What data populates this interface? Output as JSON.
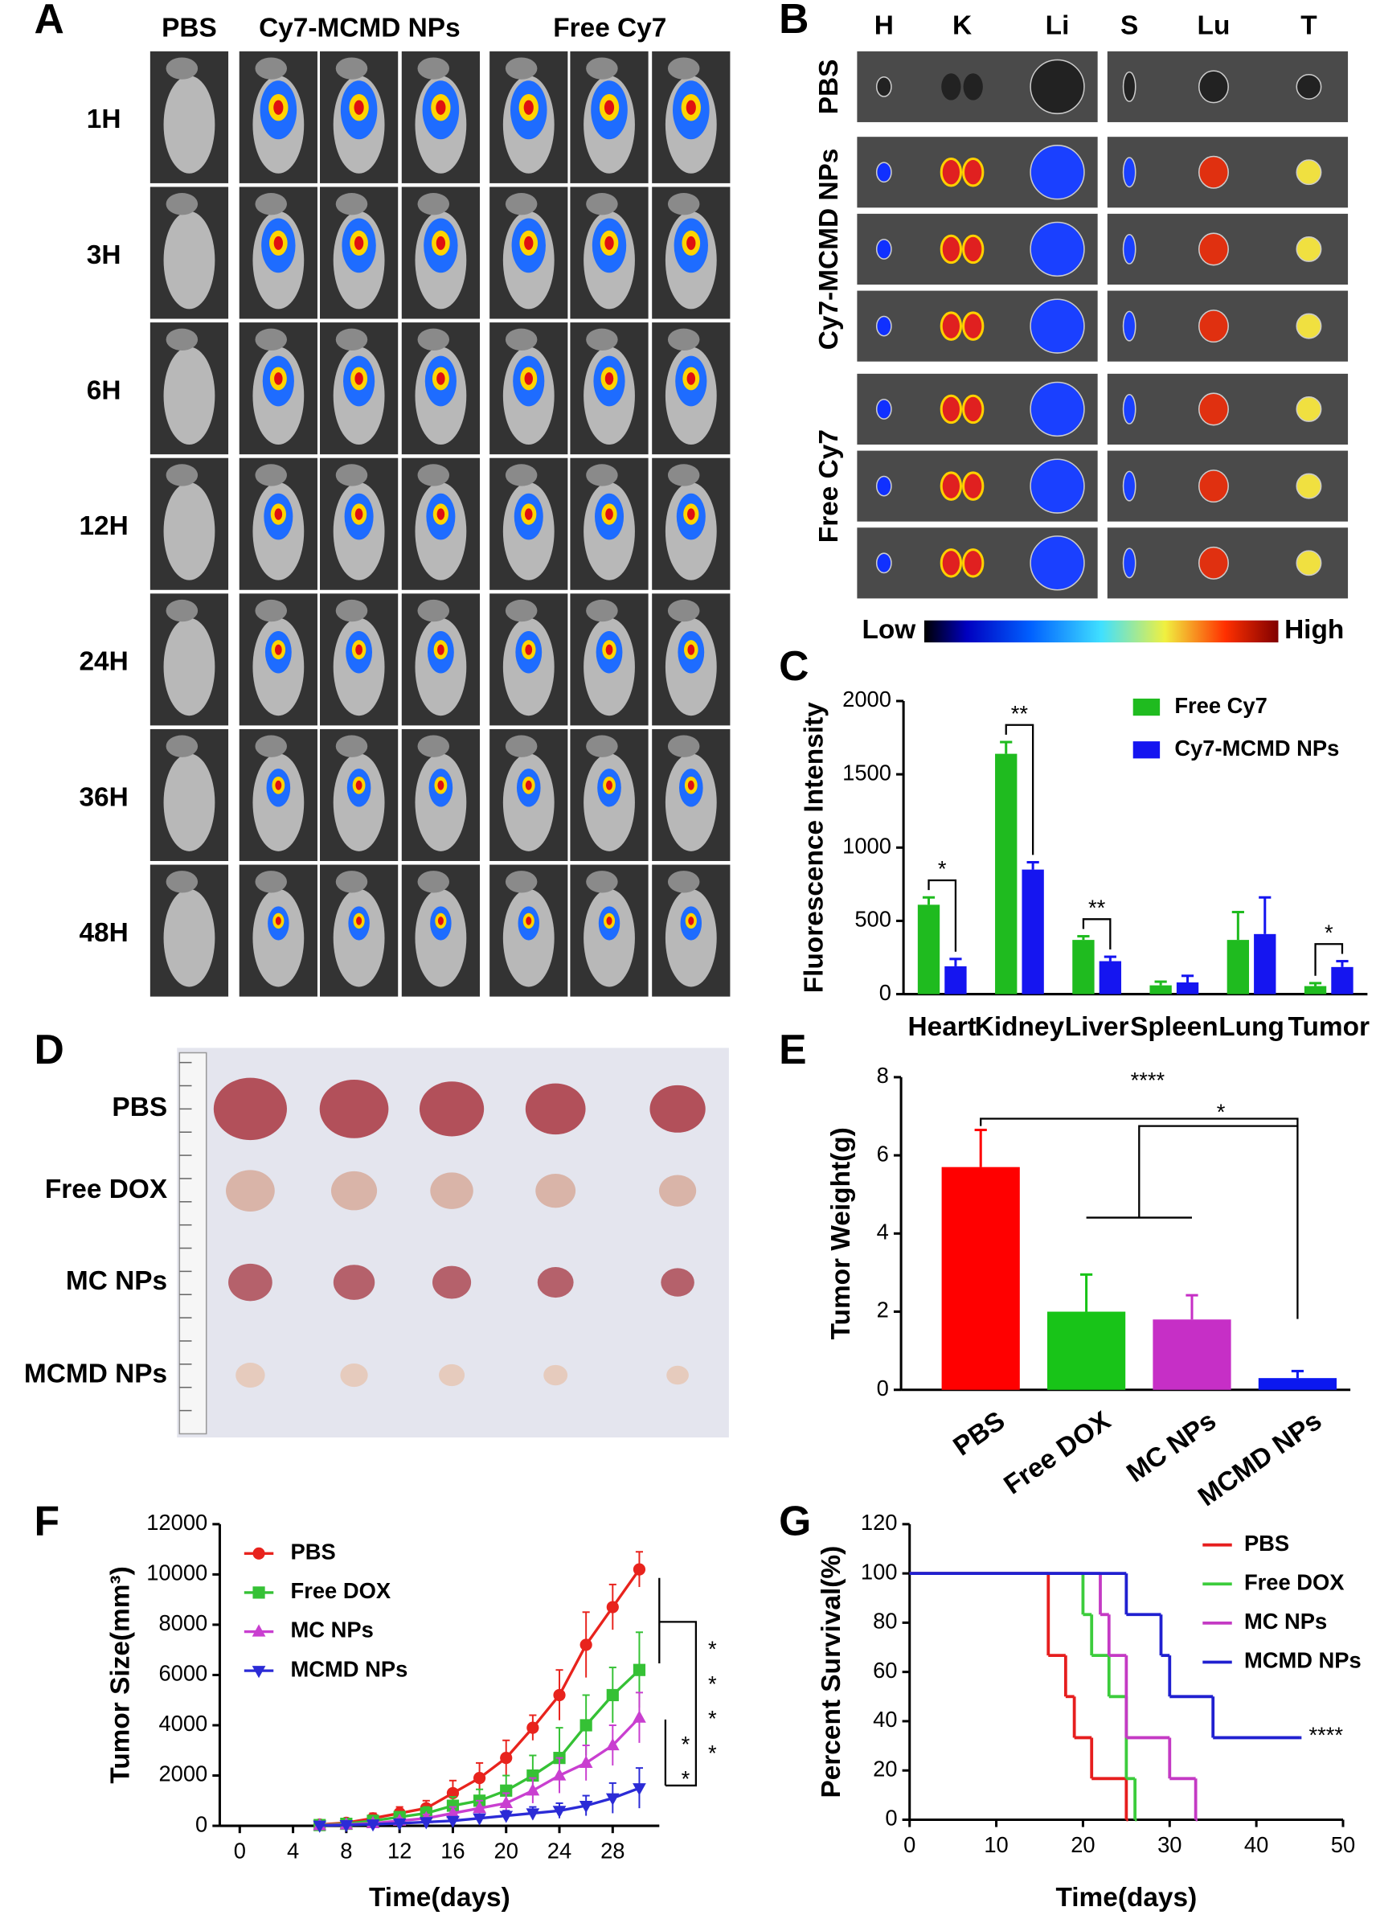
{
  "panels": {
    "a": {
      "letter": "A",
      "columns": [
        "PBS",
        "Cy7-MCMD NPs",
        "Free Cy7"
      ],
      "rows": [
        "1H",
        "3H",
        "6H",
        "12H",
        "24H",
        "36H",
        "48H"
      ]
    },
    "b": {
      "letter": "B",
      "columns": [
        "H",
        "K",
        "Li",
        "S",
        "Lu",
        "T"
      ],
      "rows": [
        "PBS",
        "Cy7-MCMD NPs",
        "Free Cy7"
      ],
      "colorbar": {
        "low": "Low",
        "high": "High"
      }
    },
    "d": {
      "letter": "D",
      "rows": [
        "PBS",
        "Free DOX",
        "MC NPs",
        "MCMD NPs"
      ]
    }
  },
  "chart_data": [
    {
      "type": "bar",
      "panel": "C",
      "ylabel": "Fluorescence Intensity",
      "categories": [
        "Heart",
        "Kidney",
        "Liver",
        "Spleen",
        "Lung",
        "Tumor"
      ],
      "series": [
        {
          "name": "Free Cy7",
          "color": "#1fbb1f",
          "values": [
            610,
            1640,
            370,
            60,
            370,
            55
          ],
          "errors": [
            50,
            80,
            25,
            25,
            190,
            20
          ]
        },
        {
          "name": "Cy7-MCMD NPs",
          "color": "#1515f0",
          "values": [
            190,
            850,
            225,
            80,
            410,
            185
          ],
          "errors": [
            50,
            50,
            30,
            45,
            250,
            40
          ]
        }
      ],
      "significance": [
        "*",
        "**",
        "**",
        null,
        null,
        "*"
      ],
      "ylim": [
        0,
        2000
      ],
      "yticks": [
        0,
        500,
        1000,
        1500,
        2000
      ]
    },
    {
      "type": "bar",
      "panel": "E",
      "ylabel": "Tumor Weight(g)",
      "categories": [
        "PBS",
        "Free DOX",
        "MC NPs",
        "MCMD NPs"
      ],
      "values": [
        5.7,
        2.0,
        1.8,
        0.3
      ],
      "errors": [
        0.95,
        0.95,
        0.62,
        0.18
      ],
      "colors": [
        "#ff0000",
        "#18c418",
        "#c62fc6",
        "#0b18f0"
      ],
      "annotations": [
        "****",
        "*"
      ],
      "ylim": [
        0,
        8
      ],
      "yticks": [
        0,
        2,
        4,
        6,
        8
      ]
    },
    {
      "type": "line",
      "panel": "F",
      "xlabel": "Time(days)",
      "ylabel": "Tumor Size(mm³)",
      "x": [
        6,
        8,
        10,
        12,
        14,
        16,
        18,
        20,
        22,
        24,
        26,
        28,
        30
      ],
      "series": [
        {
          "name": "PBS",
          "color": "#e8231d",
          "marker": "circle",
          "values": [
            50,
            120,
            300,
            500,
            700,
            1300,
            1900,
            2700,
            3900,
            5200,
            7200,
            8700,
            10200
          ],
          "errors": [
            100,
            150,
            200,
            250,
            300,
            500,
            600,
            700,
            500,
            1000,
            1300,
            900,
            700
          ]
        },
        {
          "name": "Free DOX",
          "color": "#35c135",
          "marker": "square",
          "values": [
            30,
            80,
            200,
            350,
            500,
            800,
            1000,
            1400,
            2000,
            2700,
            4000,
            5200,
            6200
          ],
          "errors": [
            50,
            100,
            150,
            200,
            250,
            350,
            450,
            600,
            800,
            1200,
            1200,
            1100,
            1500
          ]
        },
        {
          "name": "MC NPs",
          "color": "#c93fd0",
          "marker": "triangle",
          "values": [
            20,
            50,
            100,
            200,
            300,
            500,
            700,
            900,
            1400,
            2000,
            2500,
            3200,
            4300
          ],
          "errors": [
            30,
            50,
            80,
            100,
            150,
            250,
            300,
            400,
            500,
            700,
            700,
            800,
            1000
          ]
        },
        {
          "name": "MCMD NPs",
          "color": "#2b2bd6",
          "marker": "triangle-down",
          "values": [
            10,
            30,
            60,
            100,
            150,
            200,
            300,
            400,
            500,
            600,
            800,
            1100,
            1500
          ],
          "errors": [
            20,
            30,
            50,
            60,
            80,
            100,
            150,
            200,
            250,
            300,
            400,
            600,
            800
          ]
        }
      ],
      "annotations": [
        "****",
        "**"
      ],
      "xlim": [
        -1.5,
        31.5
      ],
      "xticks": [
        0,
        4,
        8,
        12,
        16,
        20,
        24,
        28
      ],
      "ylim": [
        0,
        12000
      ],
      "yticks": [
        0,
        2000,
        4000,
        6000,
        8000,
        10000,
        12000
      ]
    },
    {
      "type": "step",
      "panel": "G",
      "xlabel": "Time(days)",
      "ylabel": "Percent Survival(%)",
      "series": [
        {
          "name": "PBS",
          "color": "#e61e1e",
          "x": [
            0,
            16,
            18,
            19,
            21,
            25
          ],
          "values": [
            100,
            66.7,
            50,
            33.3,
            16.7,
            0
          ]
        },
        {
          "name": "Free DOX",
          "color": "#3ccc3c",
          "x": [
            0,
            20,
            21,
            23,
            25,
            26
          ],
          "values": [
            100,
            83.3,
            66.7,
            50,
            16.7,
            0
          ]
        },
        {
          "name": "MC NPs",
          "color": "#c43ac4",
          "x": [
            0,
            22,
            23,
            25,
            30,
            33
          ],
          "values": [
            100,
            83.3,
            66.7,
            33.3,
            16.7,
            0
          ]
        },
        {
          "name": "MCMD NPs",
          "color": "#2020d0",
          "x": [
            0,
            25,
            29,
            30,
            35,
            45
          ],
          "values": [
            100,
            83.3,
            66.7,
            50,
            33.3,
            33.3
          ]
        }
      ],
      "annotations": [
        "****"
      ],
      "xlim": [
        0,
        50
      ],
      "xticks": [
        0,
        10,
        20,
        30,
        40,
        50
      ],
      "ylim": [
        0,
        120
      ],
      "yticks": [
        0,
        20,
        40,
        60,
        80,
        100,
        120
      ]
    }
  ]
}
